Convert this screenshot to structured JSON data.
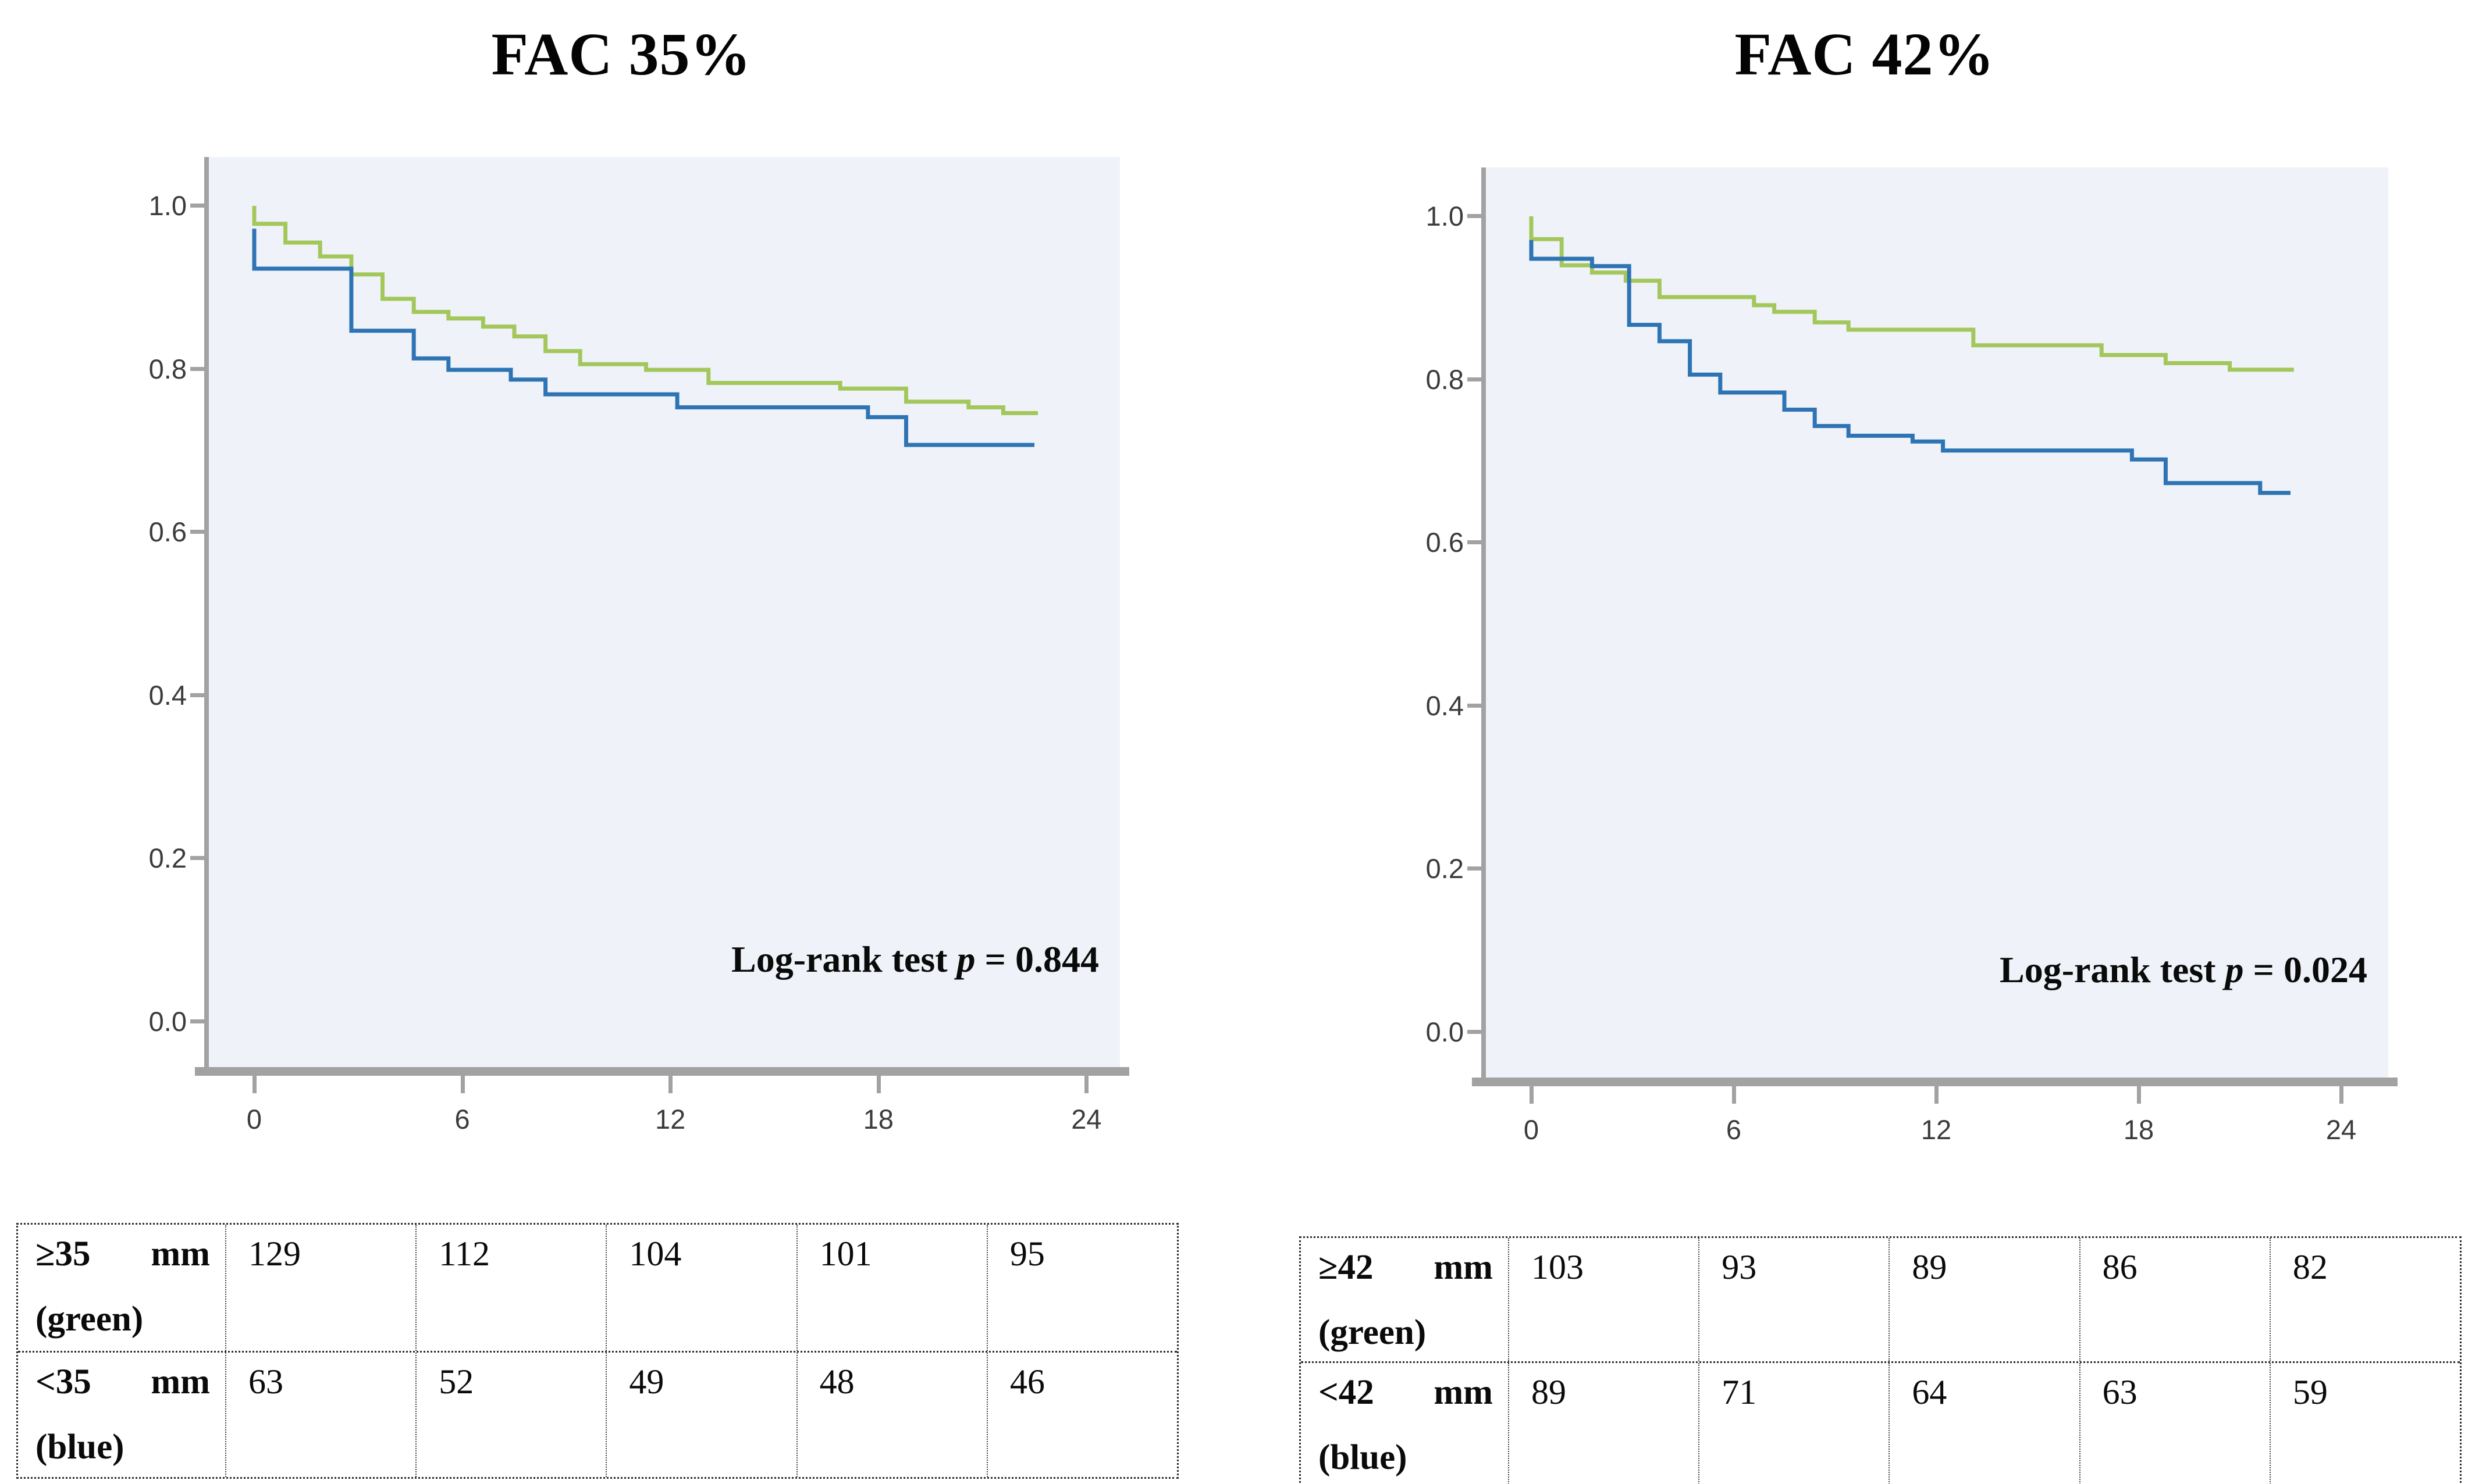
{
  "figure": {
    "background": "#ffffff"
  },
  "colors": {
    "green_curve": "#a4c75c",
    "blue_curve": "#2e74b4",
    "plot_background": "#eff3f9",
    "axis_gray": "#a2a2a2",
    "tick_text": "#3b3b3b"
  },
  "panels": [
    {
      "title": "FAC 35%",
      "logrank": {
        "prefix": "Log-rank test ",
        "p": "p",
        "value": " = 0.844"
      },
      "y_ticks": [
        "1.0",
        "0.8",
        "0.6",
        "0.4",
        "0.2",
        "0.0"
      ],
      "x_ticks": [
        "0",
        "6",
        "12",
        "18",
        "24"
      ],
      "chart_data": {
        "type": "line",
        "subtype": "kaplan-meier-step",
        "title": "FAC 35%",
        "xlabel": "",
        "ylabel": "",
        "xlim": [
          0,
          25.3
        ],
        "ylim": [
          0.0,
          1.05
        ],
        "x_tick_values": [
          0,
          6,
          12,
          18,
          24
        ],
        "y_tick_values": [
          1.0,
          0.8,
          0.6,
          0.4,
          0.2,
          0.0
        ],
        "grid": false,
        "legend_position": "none",
        "annotation": "Log-rank test p = 0.844",
        "series": [
          {
            "name": "≥35 mm (green)",
            "color_key": "green_curve",
            "points": [
              [
                0,
                1.0
              ],
              [
                0,
                0.978
              ],
              [
                0.9,
                0.955
              ],
              [
                1.9,
                0.938
              ],
              [
                2.8,
                0.916
              ],
              [
                3.7,
                0.886
              ],
              [
                4.6,
                0.87
              ],
              [
                5.6,
                0.862
              ],
              [
                6.6,
                0.852
              ],
              [
                7.5,
                0.84
              ],
              [
                8.4,
                0.822
              ],
              [
                9.4,
                0.806
              ],
              [
                11.3,
                0.799
              ],
              [
                13.1,
                0.783
              ],
              [
                16.9,
                0.776
              ],
              [
                18.8,
                0.76
              ],
              [
                20.6,
                0.753
              ],
              [
                21.6,
                0.746
              ],
              [
                22.6,
                0.746
              ]
            ]
          },
          {
            "name": "<35 mm (blue)",
            "color_key": "blue_curve",
            "points": [
              [
                0,
                0.972
              ],
              [
                0,
                0.923
              ],
              [
                2.8,
                0.847
              ],
              [
                4.6,
                0.813
              ],
              [
                5.6,
                0.799
              ],
              [
                7.4,
                0.787
              ],
              [
                8.4,
                0.769
              ],
              [
                12.2,
                0.753
              ],
              [
                17.7,
                0.741
              ],
              [
                18.8,
                0.707
              ],
              [
                22.5,
                0.707
              ]
            ]
          }
        ]
      },
      "table": {
        "rows": [
          {
            "label_left": "≥35",
            "label_right": "mm",
            "label_line2": "(green)",
            "values": [
              "129",
              "112",
              "104",
              "101",
              "95"
            ]
          },
          {
            "label_left": "<35",
            "label_right": "mm",
            "label_line2": "(blue)",
            "values": [
              "63",
              "52",
              "49",
              "48",
              "46"
            ]
          }
        ]
      }
    },
    {
      "title": "FAC 42%",
      "logrank": {
        "prefix": "Log-rank test ",
        "p": "p",
        "value": " = 0.024"
      },
      "y_ticks": [
        "1.0",
        "0.8",
        "0.6",
        "0.4",
        "0.2",
        "0.0"
      ],
      "x_ticks": [
        "0",
        "6",
        "12",
        "18",
        "24"
      ],
      "chart_data": {
        "type": "line",
        "subtype": "kaplan-meier-step",
        "title": "FAC 42%",
        "xlabel": "",
        "ylabel": "",
        "xlim": [
          0,
          25.3
        ],
        "ylim": [
          0.0,
          1.05
        ],
        "x_tick_values": [
          0,
          6,
          12,
          18,
          24
        ],
        "y_tick_values": [
          1.0,
          0.8,
          0.6,
          0.4,
          0.2,
          0.0
        ],
        "grid": false,
        "legend_position": "none",
        "annotation": "Log-rank test p = 0.024",
        "series": [
          {
            "name": "≥42 mm (green)",
            "color_key": "green_curve",
            "points": [
              [
                0,
                1.0
              ],
              [
                0,
                0.972
              ],
              [
                0.9,
                0.94
              ],
              [
                1.8,
                0.931
              ],
              [
                2.8,
                0.921
              ],
              [
                3.8,
                0.901
              ],
              [
                6.6,
                0.891
              ],
              [
                7.2,
                0.883
              ],
              [
                8.4,
                0.87
              ],
              [
                9.4,
                0.861
              ],
              [
                13.1,
                0.842
              ],
              [
                16.9,
                0.83
              ],
              [
                18.8,
                0.82
              ],
              [
                20.7,
                0.812
              ],
              [
                22.6,
                0.812
              ]
            ]
          },
          {
            "name": "<42 mm (blue)",
            "color_key": "blue_curve",
            "points": [
              [
                0,
                0.971
              ],
              [
                0,
                0.948
              ],
              [
                1.8,
                0.939
              ],
              [
                2.9,
                0.867
              ],
              [
                3.8,
                0.847
              ],
              [
                4.7,
                0.806
              ],
              [
                5.6,
                0.784
              ],
              [
                7.5,
                0.763
              ],
              [
                8.4,
                0.743
              ],
              [
                9.4,
                0.731
              ],
              [
                11.3,
                0.724
              ],
              [
                12.2,
                0.713
              ],
              [
                17.8,
                0.702
              ],
              [
                18.8,
                0.673
              ],
              [
                21.6,
                0.661
              ],
              [
                22.5,
                0.661
              ]
            ]
          }
        ]
      },
      "table": {
        "rows": [
          {
            "label_left": "≥42",
            "label_right": "mm",
            "label_line2": "(green)",
            "values": [
              "103",
              "93",
              "89",
              "86",
              "82"
            ]
          },
          {
            "label_left": "<42",
            "label_right": "mm",
            "label_line2": "(blue)",
            "values": [
              "89",
              "71",
              "64",
              "63",
              "59"
            ]
          }
        ]
      }
    }
  ]
}
